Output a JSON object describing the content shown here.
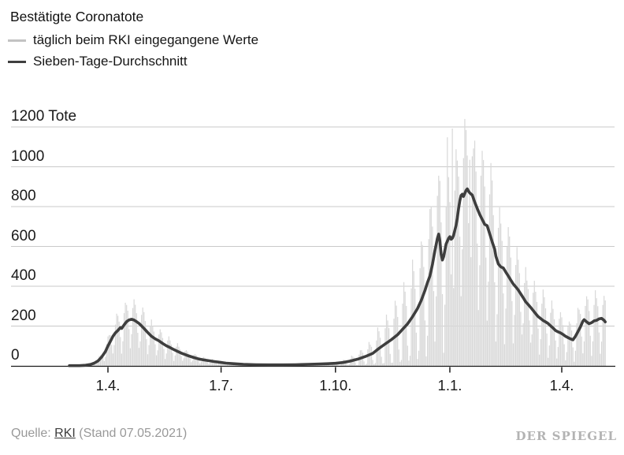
{
  "header": {
    "title": "Bestätigte Coronatote",
    "legend": [
      {
        "label": "täglich beim RKI eingegangene Werte",
        "color": "#c3c3c3"
      },
      {
        "label": "Sieben-Tage-Durchschnitt",
        "color": "#3f3f3f"
      }
    ]
  },
  "footer": {
    "source_label": "Quelle:",
    "source_link_label": "RKI",
    "source_suffix": "(Stand 07.05.2021)",
    "brand": "DER SPIEGEL"
  },
  "colors": {
    "bars": "#d9d9d9",
    "line": "#3e3e3e",
    "grid": "#c9c9c9",
    "axis": "#1a1a1a"
  },
  "chart_data": {
    "type": "bar",
    "title": "Bestätigte Coronatote",
    "ylabel": "Tote",
    "legend_position": "top-left",
    "grid": true,
    "y_axis": {
      "min": 0,
      "max": 1200,
      "tick_values": [
        1200,
        1000,
        800,
        600,
        400,
        200,
        0
      ],
      "tick_labels": [
        "1200 Tote",
        "1000",
        "800",
        "600",
        "400",
        "200",
        "0"
      ]
    },
    "x_axis": {
      "tick_labels": [
        "1.4.",
        "1.7.",
        "1.10.",
        "1.1.",
        "1.4."
      ],
      "tick_days": [
        31,
        122,
        214,
        306,
        396
      ],
      "domain_days": [
        0,
        431
      ]
    },
    "series": [
      {
        "name": "täglich beim RKI eingegangene Werte",
        "type": "bar",
        "color": "#d9d9d9",
        "model": {
          "weekshape": [
            -1.25,
            -0.75,
            0.55,
            1.0,
            0.8,
            0.45,
            -0.45
          ],
          "amp_base": 150,
          "amp_slope": 0.45,
          "amp_cap": 380,
          "amp_scale": [
            [
              0,
              0.42
            ],
            [
              205,
              0.42
            ],
            [
              240,
              1
            ],
            [
              335,
              1
            ],
            [
              365,
              0.55
            ],
            [
              431,
              0.55
            ]
          ],
          "cap": 1240
        },
        "spikes": [
          [
            297,
            955
          ],
          [
            304,
            1148
          ],
          [
            308,
            1192
          ],
          [
            311,
            1088
          ],
          [
            318,
            1240
          ],
          [
            322,
            1035
          ],
          [
            325,
            1092
          ]
        ]
      },
      {
        "name": "Sieben-Tage-Durchschnitt",
        "type": "line",
        "color": "#3e3e3e",
        "points": [
          [
            0,
            1
          ],
          [
            8,
            1
          ],
          [
            13,
            3
          ],
          [
            17,
            7
          ],
          [
            20,
            14
          ],
          [
            23,
            25
          ],
          [
            26,
            45
          ],
          [
            29,
            72
          ],
          [
            31,
            100
          ],
          [
            33,
            124
          ],
          [
            35,
            148
          ],
          [
            37,
            166
          ],
          [
            39,
            178
          ],
          [
            41,
            192
          ],
          [
            42,
            188
          ],
          [
            44,
            206
          ],
          [
            46,
            222
          ],
          [
            48,
            231
          ],
          [
            50,
            234
          ],
          [
            52,
            230
          ],
          [
            54,
            222
          ],
          [
            56,
            213
          ],
          [
            58,
            201
          ],
          [
            60,
            188
          ],
          [
            63,
            168
          ],
          [
            66,
            149
          ],
          [
            69,
            136
          ],
          [
            72,
            126
          ],
          [
            75,
            113
          ],
          [
            78,
            101
          ],
          [
            81,
            92
          ],
          [
            84,
            82
          ],
          [
            87,
            73
          ],
          [
            90,
            64
          ],
          [
            93,
            57
          ],
          [
            96,
            50
          ],
          [
            100,
            42
          ],
          [
            104,
            35
          ],
          [
            108,
            30
          ],
          [
            112,
            26
          ],
          [
            116,
            22
          ],
          [
            120,
            19
          ],
          [
            126,
            14
          ],
          [
            132,
            11
          ],
          [
            140,
            8
          ],
          [
            150,
            6
          ],
          [
            160,
            5
          ],
          [
            172,
            5
          ],
          [
            182,
            6
          ],
          [
            192,
            8
          ],
          [
            202,
            10
          ],
          [
            208,
            11
          ],
          [
            214,
            13
          ],
          [
            220,
            17
          ],
          [
            226,
            24
          ],
          [
            232,
            34
          ],
          [
            238,
            47
          ],
          [
            244,
            63
          ],
          [
            249,
            88
          ],
          [
            254,
            110
          ],
          [
            259,
            132
          ],
          [
            264,
            157
          ],
          [
            268,
            184
          ],
          [
            272,
            211
          ],
          [
            276,
            247
          ],
          [
            280,
            288
          ],
          [
            283,
            329
          ],
          [
            286,
            379
          ],
          [
            288,
            419
          ],
          [
            290,
            452
          ],
          [
            292,
            510
          ],
          [
            294,
            579
          ],
          [
            296,
            641
          ],
          [
            297,
            662
          ],
          [
            298,
            628
          ],
          [
            299,
            561
          ],
          [
            300,
            532
          ],
          [
            301,
            549
          ],
          [
            302,
            581
          ],
          [
            303,
            612
          ],
          [
            305,
            641
          ],
          [
            306,
            649
          ],
          [
            307,
            636
          ],
          [
            308,
            641
          ],
          [
            309,
            656
          ],
          [
            310,
            681
          ],
          [
            311,
            706
          ],
          [
            312,
            743
          ],
          [
            313,
            789
          ],
          [
            314,
            829
          ],
          [
            315,
            856
          ],
          [
            316,
            862
          ],
          [
            317,
            851
          ],
          [
            318,
            866
          ],
          [
            319,
            881
          ],
          [
            320,
            889
          ],
          [
            321,
            878
          ],
          [
            322,
            869
          ],
          [
            324,
            858
          ],
          [
            326,
            823
          ],
          [
            328,
            791
          ],
          [
            330,
            761
          ],
          [
            332,
            736
          ],
          [
            334,
            711
          ],
          [
            336,
            704
          ],
          [
            338,
            664
          ],
          [
            340,
            624
          ],
          [
            342,
            587
          ],
          [
            343,
            551
          ],
          [
            345,
            512
          ],
          [
            347,
            497
          ],
          [
            349,
            492
          ],
          [
            351,
            471
          ],
          [
            353,
            452
          ],
          [
            355,
            431
          ],
          [
            357,
            411
          ],
          [
            359,
            397
          ],
          [
            361,
            381
          ],
          [
            363,
            362
          ],
          [
            365,
            342
          ],
          [
            367,
            322
          ],
          [
            369,
            308
          ],
          [
            371,
            294
          ],
          [
            373,
            278
          ],
          [
            375,
            262
          ],
          [
            377,
            248
          ],
          [
            379,
            238
          ],
          [
            381,
            228
          ],
          [
            383,
            221
          ],
          [
            385,
            213
          ],
          [
            387,
            201
          ],
          [
            389,
            190
          ],
          [
            391,
            178
          ],
          [
            393,
            171
          ],
          [
            395,
            166
          ],
          [
            397,
            158
          ],
          [
            399,
            149
          ],
          [
            401,
            142
          ],
          [
            403,
            136
          ],
          [
            405,
            131
          ],
          [
            407,
            149
          ],
          [
            409,
            172
          ],
          [
            411,
            196
          ],
          [
            413,
            224
          ],
          [
            414,
            232
          ],
          [
            416,
            221
          ],
          [
            418,
            212
          ],
          [
            420,
            217
          ],
          [
            422,
            226
          ],
          [
            424,
            229
          ],
          [
            426,
            236
          ],
          [
            428,
            239
          ],
          [
            430,
            229
          ],
          [
            431,
            221
          ]
        ]
      }
    ]
  }
}
